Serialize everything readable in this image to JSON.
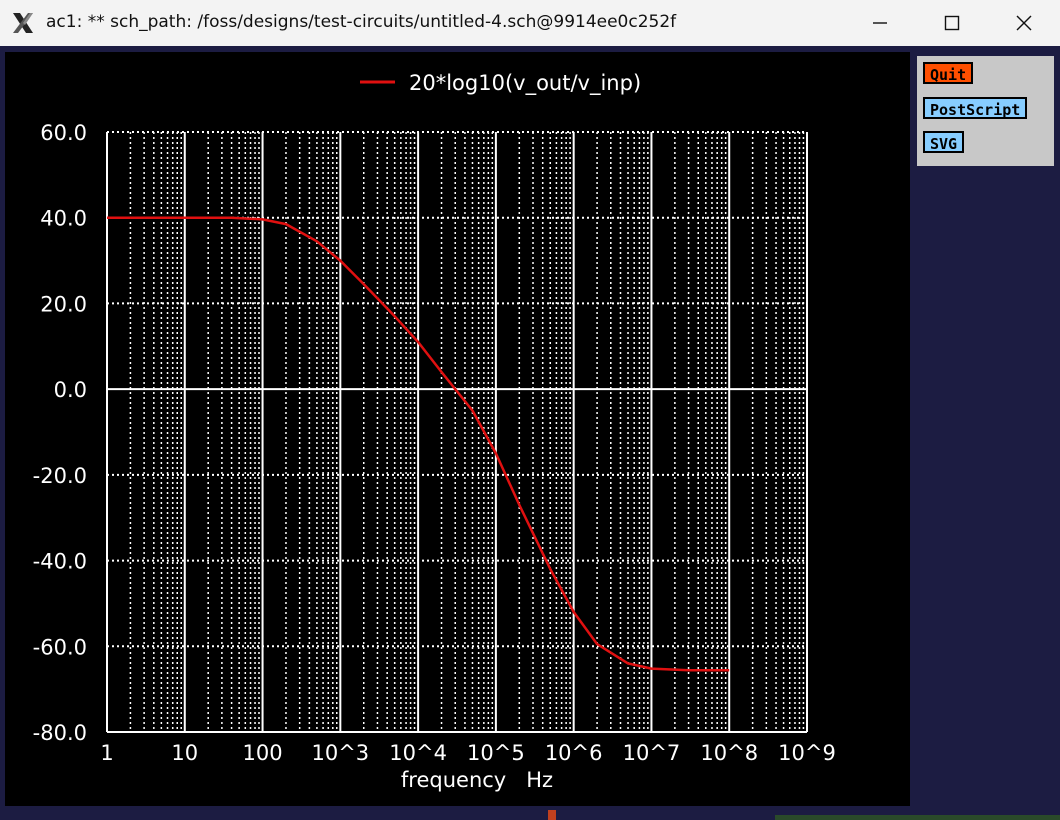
{
  "window": {
    "title": "ac1: ** sch_path: /foss/designs/test-circuits/untitled-4.sch@9914ee0c252f",
    "app_icon": "x-logo-icon",
    "controls": [
      "minimize-icon",
      "maximize-icon",
      "close-icon"
    ]
  },
  "side_panel": {
    "quit_label": "Quit",
    "postscript_label": "PostScript",
    "svg_label": "SVG"
  },
  "colors": {
    "background": "#000000",
    "grid": "#ffffff",
    "trace": "#e01010",
    "quit": "#ff4f00",
    "export_buttons": "#87cdff"
  },
  "chart_data": {
    "type": "line",
    "xscale": "log",
    "xlim": [
      1,
      1000000000
    ],
    "ylim": [
      -80,
      60
    ],
    "xlabel": "frequency   Hz",
    "ylabel": "",
    "grid": true,
    "legend_position": "top-center",
    "x_ticks": [
      1,
      10,
      100,
      1000,
      10000,
      100000,
      1000000,
      10000000,
      100000000,
      1000000000
    ],
    "x_tick_labels": [
      "1",
      "10",
      "100",
      "10^3",
      "10^4",
      "10^5",
      "10^6",
      "10^7",
      "10^8",
      "10^9"
    ],
    "y_ticks": [
      60,
      40,
      20,
      0,
      -20,
      -40,
      -60,
      -80
    ],
    "y_tick_labels": [
      "60.0",
      "40.0",
      "20.0",
      "0.0",
      "-20.0",
      "-40.0",
      "-60.0",
      "-80.0"
    ],
    "series": [
      {
        "name": "20*log10(v_out/v_inp)",
        "x": [
          1,
          10,
          40,
          100,
          200,
          500,
          1000,
          2000,
          5000,
          10000,
          20000,
          30000,
          50000,
          100000,
          200000,
          500000,
          1000000,
          2000000,
          5000000,
          10000000,
          30000000,
          100000000
        ],
        "values": [
          40,
          40,
          40,
          39.6,
          38.5,
          34.5,
          30,
          24.5,
          17,
          11,
          4,
          0,
          -5,
          -15,
          -27,
          -42,
          -52,
          -59.5,
          -64,
          -65.2,
          -65.6,
          -65.6
        ]
      }
    ]
  }
}
